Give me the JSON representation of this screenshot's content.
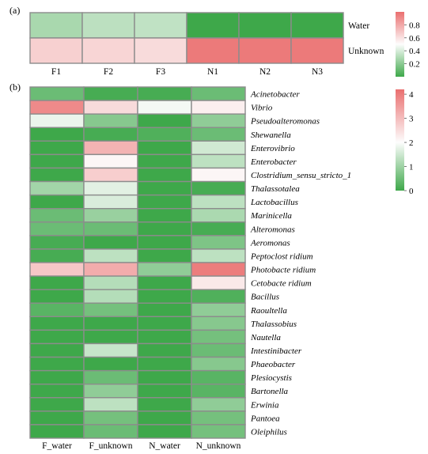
{
  "chart_data": [
    {
      "type": "heatmap",
      "panel": "(a)",
      "columns": [
        "F1",
        "F2",
        "F3",
        "N1",
        "N2",
        "N3"
      ],
      "rows": [
        "Water",
        "Unknown"
      ],
      "values": [
        [
          0.28,
          0.33,
          0.34,
          0.0,
          0.0,
          0.0
        ],
        [
          0.66,
          0.64,
          0.62,
          0.96,
          0.96,
          0.96
        ]
      ],
      "colorbar": {
        "ticks": [
          0.2,
          0.4,
          0.6,
          0.8
        ],
        "range": [
          0.0,
          1.0
        ]
      },
      "colors": {
        "low": "#3ea84a",
        "mid": "#fdfdfd",
        "high": "#ea6f6f"
      }
    },
    {
      "type": "heatmap",
      "panel": "(b)",
      "columns": [
        "F_water",
        "F_unknown",
        "N_water",
        "N_unknown"
      ],
      "rows": [
        "Acinetobacter",
        "Vibrio",
        "Pseudoalteromonas",
        "Shewanella",
        "Enterovibrio",
        "Enterobacter",
        "Clostridium_sensu_stricto_1",
        "Thalassotalea",
        "Lactobacillus",
        "Marinicella",
        "Alteromonas",
        "Aeromonas",
        "Peptoclost ridium",
        "Photobacte ridium",
        "Cetobacte ridium",
        "Bacillus",
        "Raoultella",
        "Thalassobius",
        "Nautella",
        "Intestinibacter",
        "Phaeobacter",
        "Plesiocystis",
        "Bartonella",
        "Erwinia",
        "Pantoea",
        "Oleiphilus"
      ],
      "values": [
        [
          0.5,
          0.1,
          0.1,
          0.5
        ],
        [
          3.8,
          2.6,
          2.0,
          2.3
        ],
        [
          1.9,
          0.8,
          0.0,
          0.9
        ],
        [
          0.0,
          0.1,
          0.2,
          0.5
        ],
        [
          0.0,
          3.2,
          0.0,
          1.6
        ],
        [
          0.0,
          2.2,
          0.0,
          1.4
        ],
        [
          0.0,
          2.8,
          0.0,
          2.2
        ],
        [
          1.1,
          1.8,
          0.0,
          0.1
        ],
        [
          0.0,
          1.7,
          0.0,
          1.4
        ],
        [
          0.5,
          1.0,
          0.0,
          1.2
        ],
        [
          0.5,
          0.5,
          0.0,
          0.1
        ],
        [
          0.1,
          0.0,
          0.0,
          0.7
        ],
        [
          0.1,
          1.4,
          0.0,
          1.4
        ],
        [
          2.9,
          3.3,
          0.9,
          4.0
        ],
        [
          0.0,
          1.3,
          0.0,
          2.4
        ],
        [
          0.0,
          1.3,
          0.0,
          0.2
        ],
        [
          0.3,
          0.6,
          0.0,
          0.9
        ],
        [
          0.0,
          0.0,
          0.0,
          0.8
        ],
        [
          0.0,
          0.0,
          0.0,
          0.6
        ],
        [
          0.0,
          1.5,
          0.0,
          0.5
        ],
        [
          0.0,
          0.0,
          0.0,
          0.8
        ],
        [
          0.0,
          0.5,
          0.0,
          0.3
        ],
        [
          0.0,
          0.9,
          0.0,
          0.3
        ],
        [
          0.0,
          1.4,
          0.0,
          0.9
        ],
        [
          0.0,
          0.6,
          0.0,
          0.6
        ],
        [
          0.0,
          0.5,
          0.0,
          0.6
        ]
      ],
      "colorbar": {
        "ticks": [
          0,
          1,
          2,
          3,
          4
        ],
        "range": [
          0,
          4.2
        ]
      },
      "colors": {
        "low": "#3ea84a",
        "mid": "#fdfdfd",
        "high": "#ea6f6f"
      }
    }
  ]
}
